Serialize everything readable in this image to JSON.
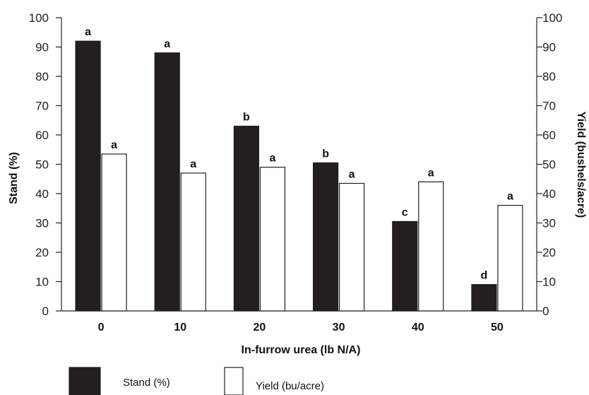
{
  "chart_data": {
    "type": "bar",
    "categories": [
      "0",
      "10",
      "20",
      "30",
      "40",
      "50"
    ],
    "xlabel": "In-furrow urea (lb N/A)",
    "ylabel_left": "Stand (%)",
    "ylabel_right": "Yield (bushels/acre)",
    "ylim_left": [
      0,
      100
    ],
    "ylim_right": [
      0,
      100
    ],
    "yticks": [
      0,
      10,
      20,
      30,
      40,
      50,
      60,
      70,
      80,
      90,
      100
    ],
    "grid": false,
    "legend_position": "bottom-left",
    "series": [
      {
        "name": "Stand (%)",
        "axis": "left",
        "color": "#231f20",
        "values": [
          92,
          88,
          63,
          50.5,
          30.5,
          9
        ],
        "labels": [
          "a",
          "a",
          "b",
          "b",
          "c",
          "d"
        ]
      },
      {
        "name": "Yield (bu/acre)",
        "axis": "right",
        "color": "#ffffff",
        "values": [
          53.5,
          47,
          49,
          43.5,
          44,
          36
        ],
        "labels": [
          "a",
          "a",
          "a",
          "a",
          "a",
          "a"
        ]
      }
    ]
  }
}
